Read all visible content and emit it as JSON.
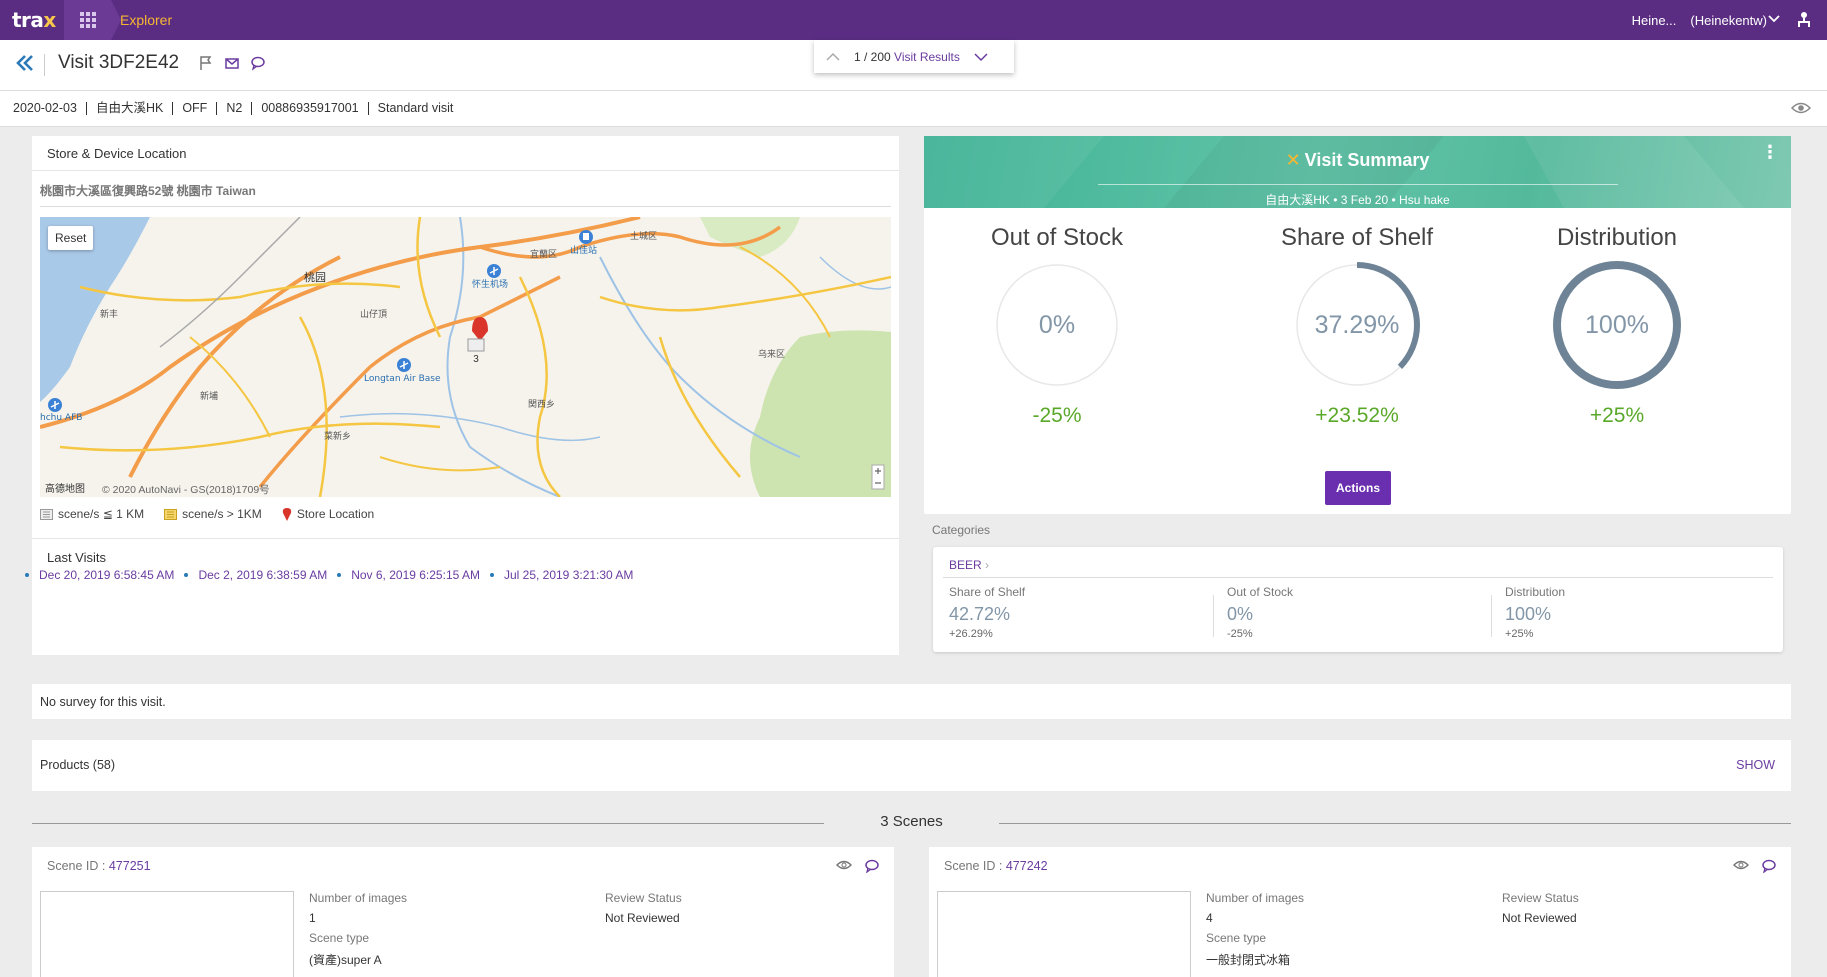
{
  "app": {
    "logo_text": "tra",
    "logo_x": "x",
    "app_name": "Explorer",
    "user_short": "Heine...",
    "user_full": "(Heinekentw)"
  },
  "visit": {
    "title": "Visit 3DF2E42",
    "pager_count": "1 / 200",
    "pager_label": "Visit Results"
  },
  "info_strip": [
    "2020-02-03",
    "自由大溪HK",
    "OFF",
    "N2",
    "00886935917001",
    "Standard visit"
  ],
  "location": {
    "title": "Store & Device Location",
    "address": "桃園市大溪區復興路52號 桃園市 Taiwan",
    "reset_label": "Reset",
    "map_copyright": "© 2020 AutoNavi - GS(2018)1709号",
    "map_provider": "高德地图",
    "marker_count": "3",
    "place_labels": [
      "桃园",
      "山佳站",
      "新丰",
      "新埔",
      "山仔頂",
      "怀生机场",
      "Longtan Air Base",
      "hchu AFB",
      "乌来区",
      "関西乡",
      "菜新乡",
      "宜蘭区",
      "土城区"
    ],
    "legend": [
      {
        "label": "scene/s ≦ 1 KM"
      },
      {
        "label": "scene/s > 1KM"
      },
      {
        "label": "Store Location"
      }
    ],
    "last_visits_title": "Last Visits",
    "last_visits": [
      "Dec 20, 2019 6:58:45 AM",
      "Dec 2, 2019 6:38:59 AM",
      "Nov 6, 2019 6:25:15 AM",
      "Jul 25, 2019 3:21:30 AM"
    ]
  },
  "summary": {
    "title": "Visit Summary",
    "subtitle": "自由大溪HK • 3 Feb 20 • Hsu hake",
    "metrics": [
      {
        "name": "Out of Stock",
        "value": "0%",
        "fraction": 0.0,
        "delta": "-25%"
      },
      {
        "name": "Share of Shelf",
        "value": "37.29%",
        "fraction": 0.3729,
        "delta": "+23.52%"
      },
      {
        "name": "Distribution",
        "value": "100%",
        "fraction": 1.0,
        "delta": "+25%"
      }
    ],
    "actions_label": "Actions",
    "colors": {
      "gauge": "#6e8496",
      "delta": "#5aa829",
      "accent": "#6a2fae"
    }
  },
  "categories": {
    "label": "Categories",
    "category": "BEER",
    "cols": [
      {
        "name": "Share of Shelf",
        "value": "42.72%",
        "delta": "+26.29%"
      },
      {
        "name": "Out of Stock",
        "value": "0%",
        "delta": "-25%"
      },
      {
        "name": "Distribution",
        "value": "100%",
        "delta": "+25%"
      }
    ]
  },
  "survey": {
    "text": "No survey for this visit."
  },
  "products": {
    "label": "Products (58)",
    "show_label": "SHOW"
  },
  "scenes": {
    "header": "3 Scenes",
    "items": [
      {
        "id_label": "Scene ID :",
        "id": "477251",
        "num_images_label": "Number of images",
        "num_images": "1",
        "review_label": "Review Status",
        "review": "Not Reviewed",
        "type_label": "Scene type",
        "type": "(資產)super A"
      },
      {
        "id_label": "Scene ID :",
        "id": "477242",
        "num_images_label": "Number of images",
        "num_images": "4",
        "review_label": "Review Status",
        "review": "Not Reviewed",
        "type_label": "Scene type",
        "type": "一般封閉式冰箱"
      }
    ]
  }
}
